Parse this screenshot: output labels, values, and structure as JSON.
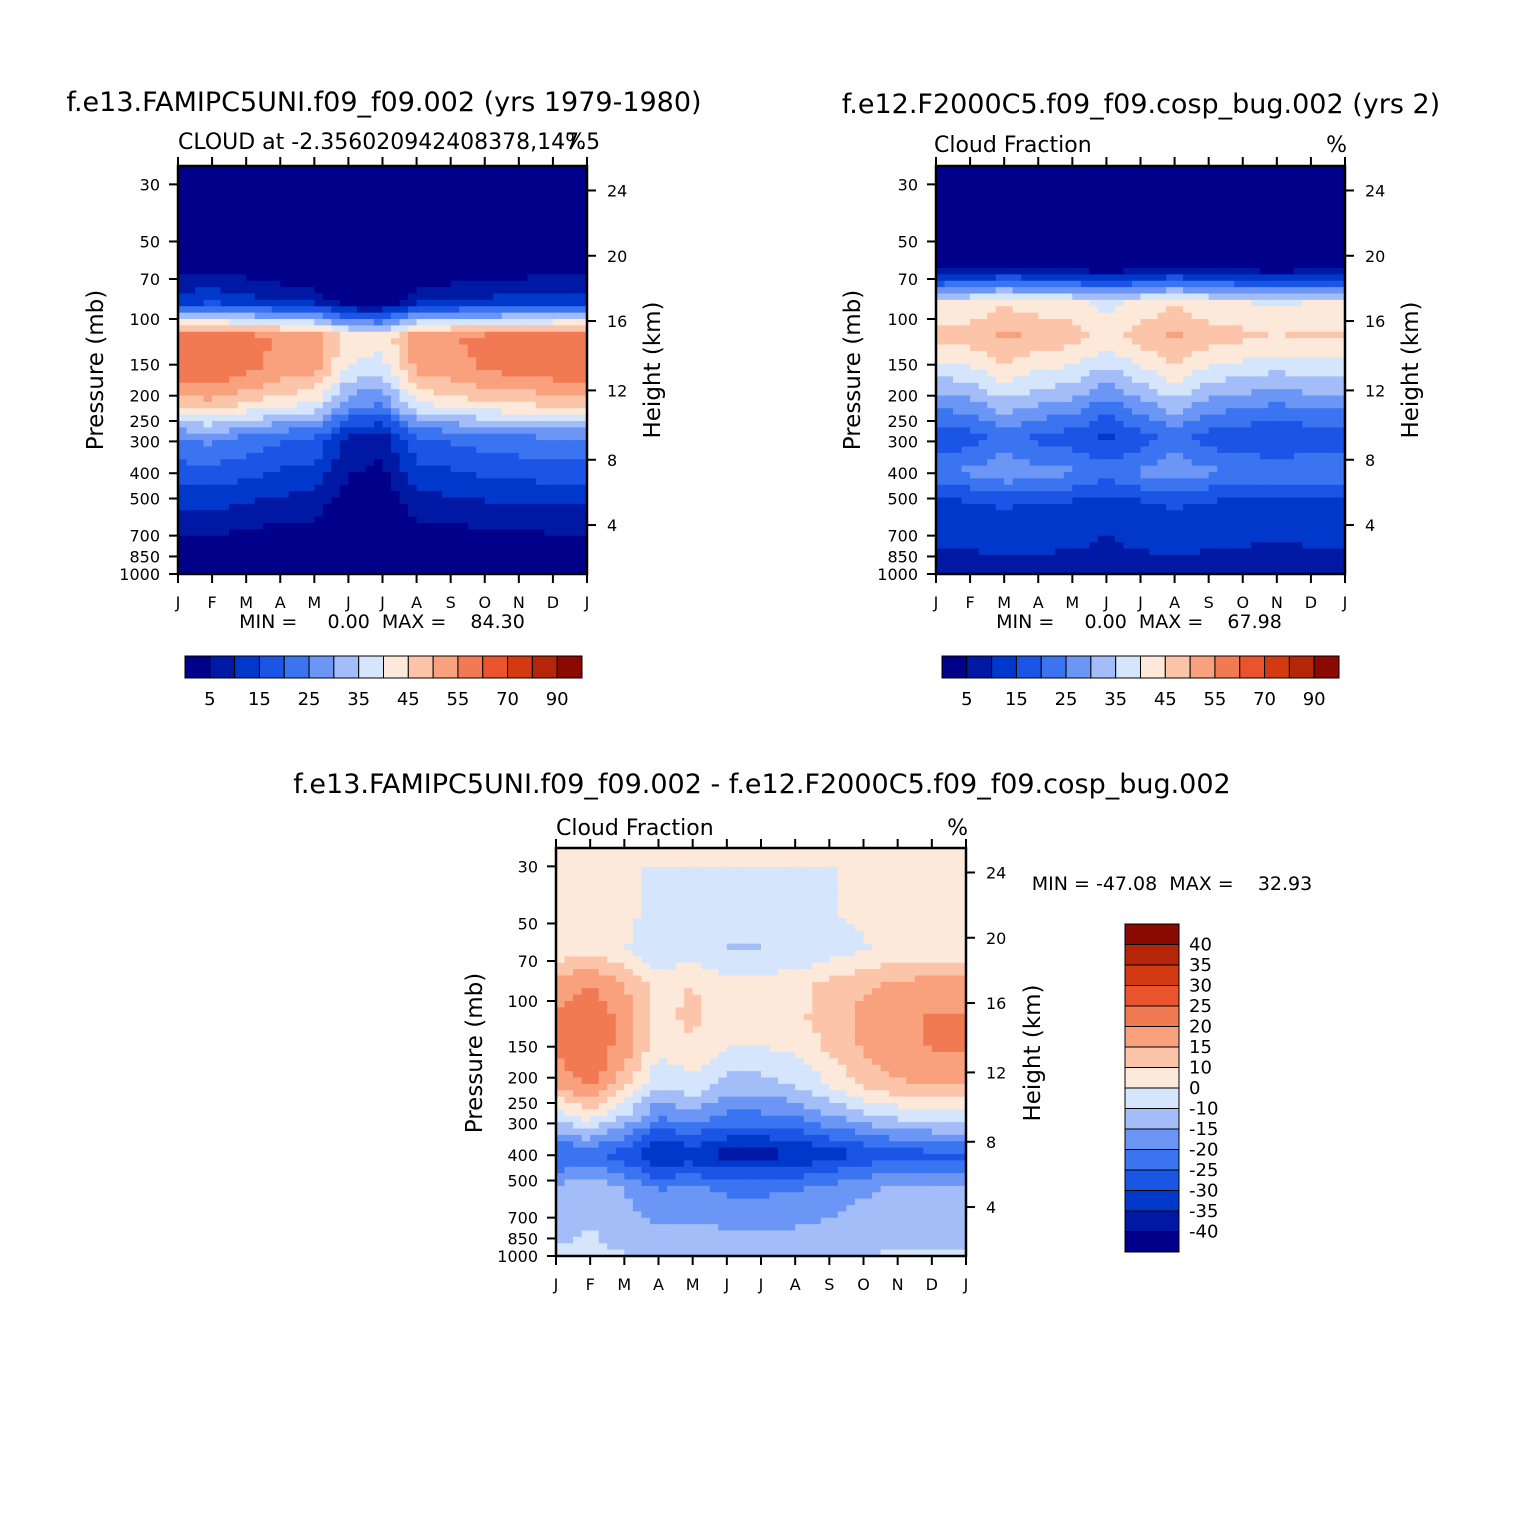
{
  "panels": [
    {
      "title": "f.e13.FAMIPC5UNI.f09_f09.002 (yrs 1979-1980)",
      "subtitle_left": "CLOUD at -2.356020942408378,147.5",
      "subtitle_right": "%",
      "ylabel_left": "Pressure (mb)",
      "ylabel_right": "Height (km)",
      "stats": "MIN =     0.00  MAX =    84.30"
    },
    {
      "title": "f.e12.F2000C5.f09_f09.cosp_bug.002 (yrs 2)",
      "subtitle_left": "Cloud Fraction",
      "subtitle_right": "%",
      "ylabel_left": "Pressure (mb)",
      "ylabel_right": "Height (km)",
      "stats": "MIN =     0.00  MAX =    67.98"
    },
    {
      "title": "f.e13.FAMIPC5UNI.f09_f09.002 - f.e12.F2000C5.f09_f09.cosp_bug.002",
      "subtitle_left": "Cloud Fraction",
      "subtitle_right": "%",
      "ylabel_left": "Pressure (mb)",
      "ylabel_right": "Height (km)",
      "stats": "MIN = -47.08  MAX =    32.93"
    }
  ],
  "colorbars": {
    "cloud": {
      "colors": [
        "#00008a",
        "#0019a5",
        "#0038cc",
        "#1a55e6",
        "#3a74f0",
        "#6b96f5",
        "#a3bdf8",
        "#d5e5fb",
        "#fde9da",
        "#fcc5aa",
        "#f9a07c",
        "#f27a52",
        "#e9542e",
        "#d33a12",
        "#b52507",
        "#8a0a02"
      ],
      "tick_labels": [
        "5",
        "15",
        "25",
        "35",
        "45",
        "55",
        "70",
        "90"
      ]
    },
    "difference": {
      "colors": [
        "#00008a",
        "#0019a5",
        "#0038cc",
        "#1a55e6",
        "#3a74f0",
        "#6b96f5",
        "#a3bdf8",
        "#d5e5fb",
        "#fde9da",
        "#fcc5aa",
        "#f9a07c",
        "#f27a52",
        "#e9542e",
        "#d33a12",
        "#b52507",
        "#8a0a02"
      ],
      "tick_labels": [
        "40",
        "35",
        "30",
        "25",
        "20",
        "15",
        "10",
        "0",
        "-10",
        "-15",
        "-20",
        "-25",
        "-30",
        "-35",
        "-40"
      ]
    }
  },
  "chart_data": [
    {
      "type": "heatmap",
      "title": "f.e13.FAMIPC5UNI.f09_f09.002 (yrs 1979-1980)",
      "x_ticks": [
        "J",
        "F",
        "M",
        "A",
        "M",
        "J",
        "J",
        "A",
        "S",
        "O",
        "N",
        "D",
        "J"
      ],
      "y_ticks": [
        "30",
        "50",
        "70",
        "100",
        "150",
        "200",
        "250",
        "300",
        "400",
        "500",
        "700",
        "850",
        "1000"
      ],
      "y2_ticks": [
        "24",
        "20",
        "16",
        "12",
        "8",
        "4"
      ],
      "ylabel": "Pressure (mb)",
      "y2label": "Height (km)",
      "z_min": 0.0,
      "z_max": 84.3,
      "profile": [
        0,
        0,
        0,
        0,
        10,
        60,
        58,
        45,
        22,
        15,
        8,
        2,
        0
      ],
      "month_shift": [
        8,
        10,
        6,
        2,
        0,
        -15,
        -18,
        0,
        2,
        5,
        6,
        8,
        8
      ]
    },
    {
      "type": "heatmap",
      "title": "f.e12.F2000C5.f09_f09.cosp_bug.002 (yrs 2)",
      "x_ticks": [
        "J",
        "F",
        "M",
        "A",
        "M",
        "J",
        "J",
        "A",
        "S",
        "O",
        "N",
        "D",
        "J"
      ],
      "y_ticks": [
        "30",
        "50",
        "70",
        "100",
        "150",
        "200",
        "250",
        "300",
        "400",
        "500",
        "700",
        "850",
        "1000"
      ],
      "y2_ticks": [
        "24",
        "20",
        "16",
        "12",
        "8",
        "4"
      ],
      "ylabel": "Pressure (mb)",
      "y2label": "Height (km)",
      "z_min": 0.0,
      "z_max": 67.98,
      "profile": [
        0,
        0,
        0,
        2,
        45,
        52,
        42,
        30,
        18,
        28,
        14,
        12,
        8
      ],
      "month_shift": [
        0,
        2,
        8,
        4,
        2,
        -4,
        2,
        8,
        2,
        0,
        -2,
        0,
        0
      ]
    },
    {
      "type": "heatmap",
      "title": "f.e13.FAMIPC5UNI.f09_f09.002 - f.e12.F2000C5.f09_f09.cosp_bug.002",
      "x_ticks": [
        "J",
        "F",
        "M",
        "A",
        "M",
        "J",
        "J",
        "A",
        "S",
        "O",
        "N",
        "D",
        "J"
      ],
      "y_ticks": [
        "30",
        "50",
        "70",
        "100",
        "150",
        "200",
        "250",
        "300",
        "400",
        "500",
        "700",
        "850",
        "1000"
      ],
      "y2_ticks": [
        "24",
        "20",
        "16",
        "12",
        "8",
        "4"
      ],
      "ylabel": "Pressure (mb)",
      "y2label": "Height (km)",
      "z_min": -47.08,
      "z_max": 32.93,
      "profile": [
        0,
        0,
        0,
        -2,
        8,
        10,
        8,
        2,
        -12,
        -30,
        -14,
        -10,
        -6
      ],
      "month_shift": [
        10,
        16,
        6,
        -8,
        -4,
        -10,
        -10,
        -8,
        -2,
        4,
        8,
        10,
        10
      ]
    }
  ]
}
